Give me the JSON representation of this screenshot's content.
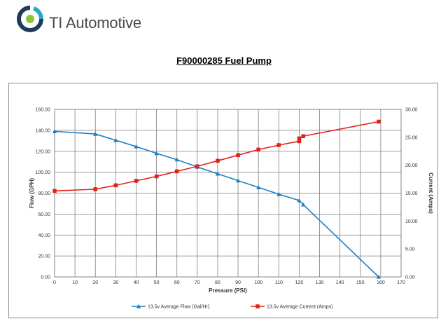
{
  "header": {
    "brand_name": "TI Automotive",
    "brand_colors": {
      "dark_blue": "#1f3a5c",
      "teal": "#2fa6c9",
      "green": "#8cc63f"
    },
    "logo_icon": "ti-swirl-logo-icon"
  },
  "page_title": "F90000285 Fuel Pump",
  "chart_data": {
    "type": "line",
    "title": "",
    "xlabel": "Pressure (PSI)",
    "ylabel_left": "Flow (GPH)",
    "ylabel_right": "Current (Amps)",
    "xlim": [
      0,
      170
    ],
    "ylim_left": [
      0,
      160
    ],
    "ylim_right": [
      0,
      30
    ],
    "x_ticks": [
      "0",
      "10",
      "20",
      "30",
      "40",
      "50",
      "60",
      "70",
      "80",
      "90",
      "100",
      "110",
      "120",
      "130",
      "140",
      "150",
      "160",
      "170"
    ],
    "y_ticks_left": [
      "0.00",
      "20.00",
      "40.00",
      "60.00",
      "80.00",
      "100.00",
      "120.00",
      "140.00",
      "160.00"
    ],
    "y_ticks_right": [
      "0.00",
      "5.00",
      "10.00",
      "15.00",
      "20.00",
      "25.00",
      "30.00"
    ],
    "grid": true,
    "legend_position": "bottom",
    "series": [
      {
        "name": "13.5v Average Flow (Gal/Hr)",
        "axis": "left",
        "color": "#1f7fc0",
        "marker": "triangle",
        "x": [
          0,
          20,
          30,
          40,
          50,
          60,
          70,
          80,
          90,
          100,
          110,
          120,
          122,
          159
        ],
        "y": [
          139,
          136.5,
          130.5,
          124.5,
          118,
          112,
          105,
          98.5,
          92,
          85.5,
          79,
          73,
          69,
          0
        ]
      },
      {
        "name": "13.5v Average Current (Amps)",
        "axis": "right",
        "color": "#e3231b",
        "marker": "square",
        "x": [
          0,
          20,
          30,
          40,
          50,
          60,
          70,
          80,
          90,
          100,
          110,
          120,
          120,
          122,
          159
        ],
        "y": [
          15.4,
          15.7,
          16.4,
          17.2,
          18.0,
          18.9,
          19.8,
          20.8,
          21.8,
          22.8,
          23.6,
          24.3,
          24.8,
          25.2,
          27.8
        ]
      }
    ]
  }
}
